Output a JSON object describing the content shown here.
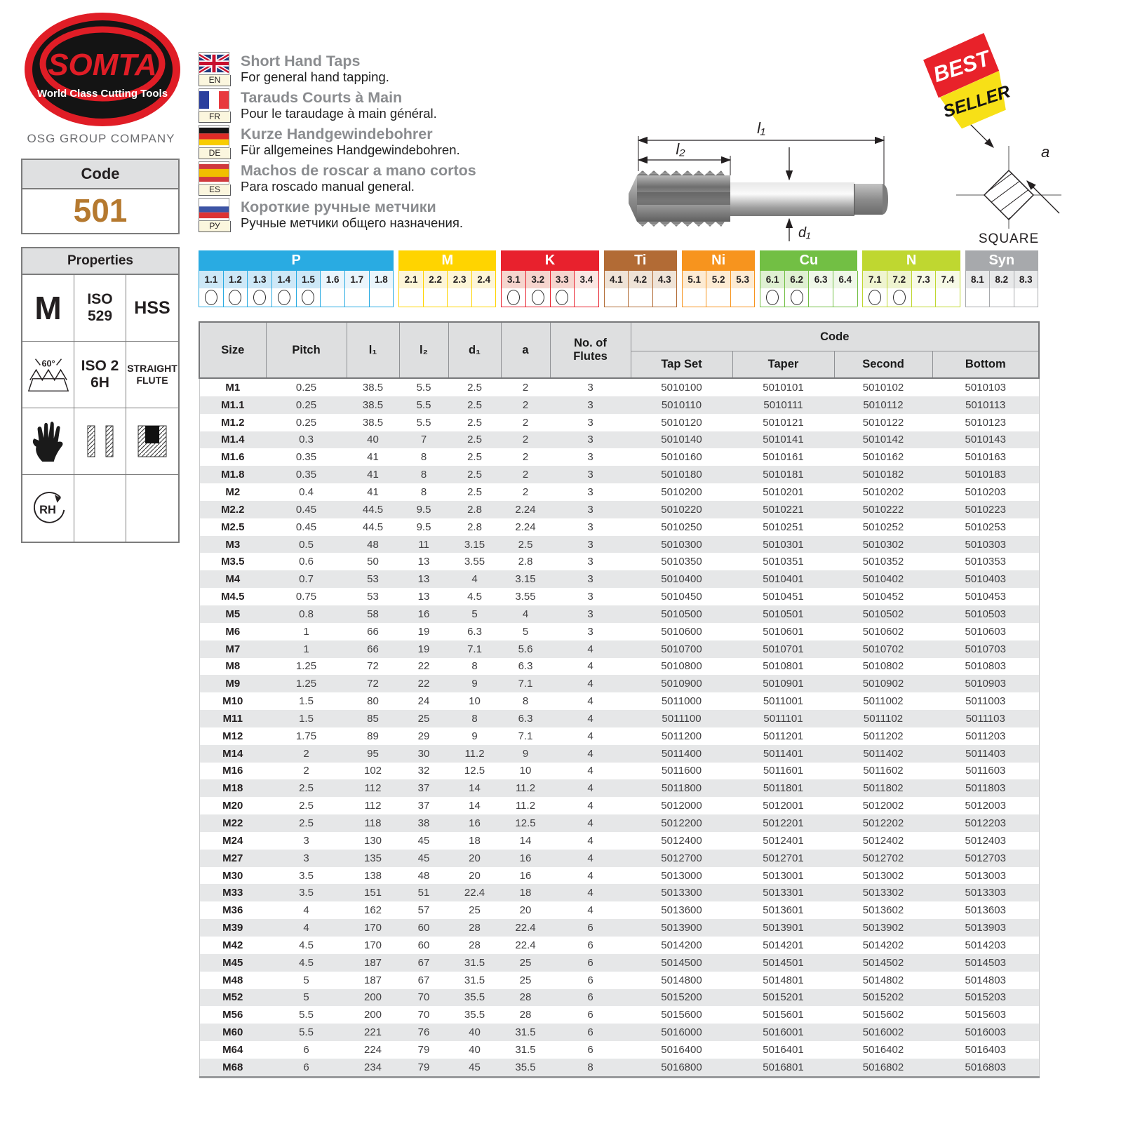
{
  "brand": {
    "name": "SOMTA",
    "tagline": "World Class Cutting Tools",
    "group": "OSG GROUP COMPANY"
  },
  "code_box": {
    "label": "Code",
    "value": "501"
  },
  "properties": {
    "title": "Properties",
    "cells": [
      {
        "label": "M"
      },
      {
        "label": "ISO\n529"
      },
      {
        "label": "HSS"
      },
      {
        "label": "60°"
      },
      {
        "label": "ISO 2\n6H"
      },
      {
        "label": "STRAIGHT\nFLUTE"
      },
      {
        "icon": "glove-icon"
      },
      {
        "icon": "through-hole-icon"
      },
      {
        "icon": "blind-hole-icon"
      },
      {
        "label": "RH"
      }
    ]
  },
  "languages": [
    {
      "code": "EN",
      "title": "Short Hand Taps",
      "subtitle": "For general hand tapping."
    },
    {
      "code": "FR",
      "title": "Tarauds Courts à Main",
      "subtitle": "Pour le taraudage à main général."
    },
    {
      "code": "DE",
      "title": "Kurze Handgewindebohrer",
      "subtitle": "Für allgemeines Handgewindebohren."
    },
    {
      "code": "ES",
      "title": "Machos de roscar a mano cortos",
      "subtitle": "Para roscado manual general."
    },
    {
      "code": "РУ",
      "title": "Короткие ручные метчики",
      "subtitle": "Ручные метчики общего назначения."
    }
  ],
  "badge": {
    "line1": "BEST",
    "line2": "SELLER",
    "red": "#E8222A",
    "yellow": "#F7E017"
  },
  "drawing": {
    "l1": "l₁",
    "l2": "l₂",
    "d1": "d₁",
    "a": "a",
    "square_label": "SQUARE"
  },
  "materials": {
    "groups": [
      {
        "name": "P",
        "color": "#29ABE2",
        "tint": "#EAF5FC",
        "tint_strong": "#CDE8F7",
        "cells": [
          "1.1",
          "1.2",
          "1.3",
          "1.4",
          "1.5",
          "1.6",
          "1.7",
          "1.8"
        ],
        "checked": [
          "1.1",
          "1.2",
          "1.3",
          "1.4",
          "1.5"
        ]
      },
      {
        "name": "M",
        "color": "#FFD400",
        "tint": "#FDF5D7",
        "tint_strong": "#FBEFC0",
        "cells": [
          "2.1",
          "2.2",
          "2.3",
          "2.4"
        ],
        "checked": []
      },
      {
        "name": "K",
        "color": "#E8212D",
        "tint": "#FAE6E2",
        "tint_strong": "#F6D5CE",
        "cells": [
          "3.1",
          "3.2",
          "3.3",
          "3.4"
        ],
        "checked": [
          "3.1",
          "3.2",
          "3.3"
        ]
      },
      {
        "name": "Ti",
        "color": "#B26B35",
        "tint": "#EFE3D7",
        "tint_strong": "#E7D2BF",
        "cells": [
          "4.1",
          "4.2",
          "4.3"
        ],
        "checked": []
      },
      {
        "name": "Ni",
        "color": "#F7941E",
        "tint": "#FDEBD3",
        "tint_strong": "#FBDFB9",
        "cells": [
          "5.1",
          "5.2",
          "5.3"
        ],
        "checked": []
      },
      {
        "name": "Cu",
        "color": "#72BF44",
        "tint": "#EFF7E8",
        "tint_strong": "#DFF0D2",
        "cells": [
          "6.1",
          "6.2",
          "6.3",
          "6.4"
        ],
        "checked": [
          "6.1",
          "6.2"
        ]
      },
      {
        "name": "N",
        "color": "#BFD730",
        "tint": "#F7FAE6",
        "tint_strong": "#EFF4D0",
        "cells": [
          "7.1",
          "7.2",
          "7.3",
          "7.4"
        ],
        "checked": [
          "7.1",
          "7.2"
        ]
      },
      {
        "name": "Syn",
        "color": "#A7A9AC",
        "tint": "#E8E9EA",
        "tint_strong": "#DCDDDE",
        "cells": [
          "8.1",
          "8.2",
          "8.3"
        ],
        "checked": []
      }
    ]
  },
  "table": {
    "headers": {
      "size": "Size",
      "pitch": "Pitch",
      "l1": "l₁",
      "l2": "l₂",
      "d1": "d₁",
      "a": "a",
      "flutes": "No. of\nFlutes",
      "code": "Code",
      "sub": [
        "Tap Set",
        "Taper",
        "Second",
        "Bottom"
      ]
    },
    "rows": [
      [
        "M1",
        "0.25",
        "38.5",
        "5.5",
        "2.5",
        "2",
        "3",
        "5010100",
        "5010101",
        "5010102",
        "5010103"
      ],
      [
        "M1.1",
        "0.25",
        "38.5",
        "5.5",
        "2.5",
        "2",
        "3",
        "5010110",
        "5010111",
        "5010112",
        "5010113"
      ],
      [
        "M1.2",
        "0.25",
        "38.5",
        "5.5",
        "2.5",
        "2",
        "3",
        "5010120",
        "5010121",
        "5010122",
        "5010123"
      ],
      [
        "M1.4",
        "0.3",
        "40",
        "7",
        "2.5",
        "2",
        "3",
        "5010140",
        "5010141",
        "5010142",
        "5010143"
      ],
      [
        "M1.6",
        "0.35",
        "41",
        "8",
        "2.5",
        "2",
        "3",
        "5010160",
        "5010161",
        "5010162",
        "5010163"
      ],
      [
        "M1.8",
        "0.35",
        "41",
        "8",
        "2.5",
        "2",
        "3",
        "5010180",
        "5010181",
        "5010182",
        "5010183"
      ],
      [
        "M2",
        "0.4",
        "41",
        "8",
        "2.5",
        "2",
        "3",
        "5010200",
        "5010201",
        "5010202",
        "5010203"
      ],
      [
        "M2.2",
        "0.45",
        "44.5",
        "9.5",
        "2.8",
        "2.24",
        "3",
        "5010220",
        "5010221",
        "5010222",
        "5010223"
      ],
      [
        "M2.5",
        "0.45",
        "44.5",
        "9.5",
        "2.8",
        "2.24",
        "3",
        "5010250",
        "5010251",
        "5010252",
        "5010253"
      ],
      [
        "M3",
        "0.5",
        "48",
        "11",
        "3.15",
        "2.5",
        "3",
        "5010300",
        "5010301",
        "5010302",
        "5010303"
      ],
      [
        "M3.5",
        "0.6",
        "50",
        "13",
        "3.55",
        "2.8",
        "3",
        "5010350",
        "5010351",
        "5010352",
        "5010353"
      ],
      [
        "M4",
        "0.7",
        "53",
        "13",
        "4",
        "3.15",
        "3",
        "5010400",
        "5010401",
        "5010402",
        "5010403"
      ],
      [
        "M4.5",
        "0.75",
        "53",
        "13",
        "4.5",
        "3.55",
        "3",
        "5010450",
        "5010451",
        "5010452",
        "5010453"
      ],
      [
        "M5",
        "0.8",
        "58",
        "16",
        "5",
        "4",
        "3",
        "5010500",
        "5010501",
        "5010502",
        "5010503"
      ],
      [
        "M6",
        "1",
        "66",
        "19",
        "6.3",
        "5",
        "3",
        "5010600",
        "5010601",
        "5010602",
        "5010603"
      ],
      [
        "M7",
        "1",
        "66",
        "19",
        "7.1",
        "5.6",
        "4",
        "5010700",
        "5010701",
        "5010702",
        "5010703"
      ],
      [
        "M8",
        "1.25",
        "72",
        "22",
        "8",
        "6.3",
        "4",
        "5010800",
        "5010801",
        "5010802",
        "5010803"
      ],
      [
        "M9",
        "1.25",
        "72",
        "22",
        "9",
        "7.1",
        "4",
        "5010900",
        "5010901",
        "5010902",
        "5010903"
      ],
      [
        "M10",
        "1.5",
        "80",
        "24",
        "10",
        "8",
        "4",
        "5011000",
        "5011001",
        "5011002",
        "5011003"
      ],
      [
        "M11",
        "1.5",
        "85",
        "25",
        "8",
        "6.3",
        "4",
        "5011100",
        "5011101",
        "5011102",
        "5011103"
      ],
      [
        "M12",
        "1.75",
        "89",
        "29",
        "9",
        "7.1",
        "4",
        "5011200",
        "5011201",
        "5011202",
        "5011203"
      ],
      [
        "M14",
        "2",
        "95",
        "30",
        "11.2",
        "9",
        "4",
        "5011400",
        "5011401",
        "5011402",
        "5011403"
      ],
      [
        "M16",
        "2",
        "102",
        "32",
        "12.5",
        "10",
        "4",
        "5011600",
        "5011601",
        "5011602",
        "5011603"
      ],
      [
        "M18",
        "2.5",
        "112",
        "37",
        "14",
        "11.2",
        "4",
        "5011800",
        "5011801",
        "5011802",
        "5011803"
      ],
      [
        "M20",
        "2.5",
        "112",
        "37",
        "14",
        "11.2",
        "4",
        "5012000",
        "5012001",
        "5012002",
        "5012003"
      ],
      [
        "M22",
        "2.5",
        "118",
        "38",
        "16",
        "12.5",
        "4",
        "5012200",
        "5012201",
        "5012202",
        "5012203"
      ],
      [
        "M24",
        "3",
        "130",
        "45",
        "18",
        "14",
        "4",
        "5012400",
        "5012401",
        "5012402",
        "5012403"
      ],
      [
        "M27",
        "3",
        "135",
        "45",
        "20",
        "16",
        "4",
        "5012700",
        "5012701",
        "5012702",
        "5012703"
      ],
      [
        "M30",
        "3.5",
        "138",
        "48",
        "20",
        "16",
        "4",
        "5013000",
        "5013001",
        "5013002",
        "5013003"
      ],
      [
        "M33",
        "3.5",
        "151",
        "51",
        "22.4",
        "18",
        "4",
        "5013300",
        "5013301",
        "5013302",
        "5013303"
      ],
      [
        "M36",
        "4",
        "162",
        "57",
        "25",
        "20",
        "4",
        "5013600",
        "5013601",
        "5013602",
        "5013603"
      ],
      [
        "M39",
        "4",
        "170",
        "60",
        "28",
        "22.4",
        "6",
        "5013900",
        "5013901",
        "5013902",
        "5013903"
      ],
      [
        "M42",
        "4.5",
        "170",
        "60",
        "28",
        "22.4",
        "6",
        "5014200",
        "5014201",
        "5014202",
        "5014203"
      ],
      [
        "M45",
        "4.5",
        "187",
        "67",
        "31.5",
        "25",
        "6",
        "5014500",
        "5014501",
        "5014502",
        "5014503"
      ],
      [
        "M48",
        "5",
        "187",
        "67",
        "31.5",
        "25",
        "6",
        "5014800",
        "5014801",
        "5014802",
        "5014803"
      ],
      [
        "M52",
        "5",
        "200",
        "70",
        "35.5",
        "28",
        "6",
        "5015200",
        "5015201",
        "5015202",
        "5015203"
      ],
      [
        "M56",
        "5.5",
        "200",
        "70",
        "35.5",
        "28",
        "6",
        "5015600",
        "5015601",
        "5015602",
        "5015603"
      ],
      [
        "M60",
        "5.5",
        "221",
        "76",
        "40",
        "31.5",
        "6",
        "5016000",
        "5016001",
        "5016002",
        "5016003"
      ],
      [
        "M64",
        "6",
        "224",
        "79",
        "40",
        "31.5",
        "6",
        "5016400",
        "5016401",
        "5016402",
        "5016403"
      ],
      [
        "M68",
        "6",
        "234",
        "79",
        "45",
        "35.5",
        "8",
        "5016800",
        "5016801",
        "5016802",
        "5016803"
      ]
    ]
  }
}
